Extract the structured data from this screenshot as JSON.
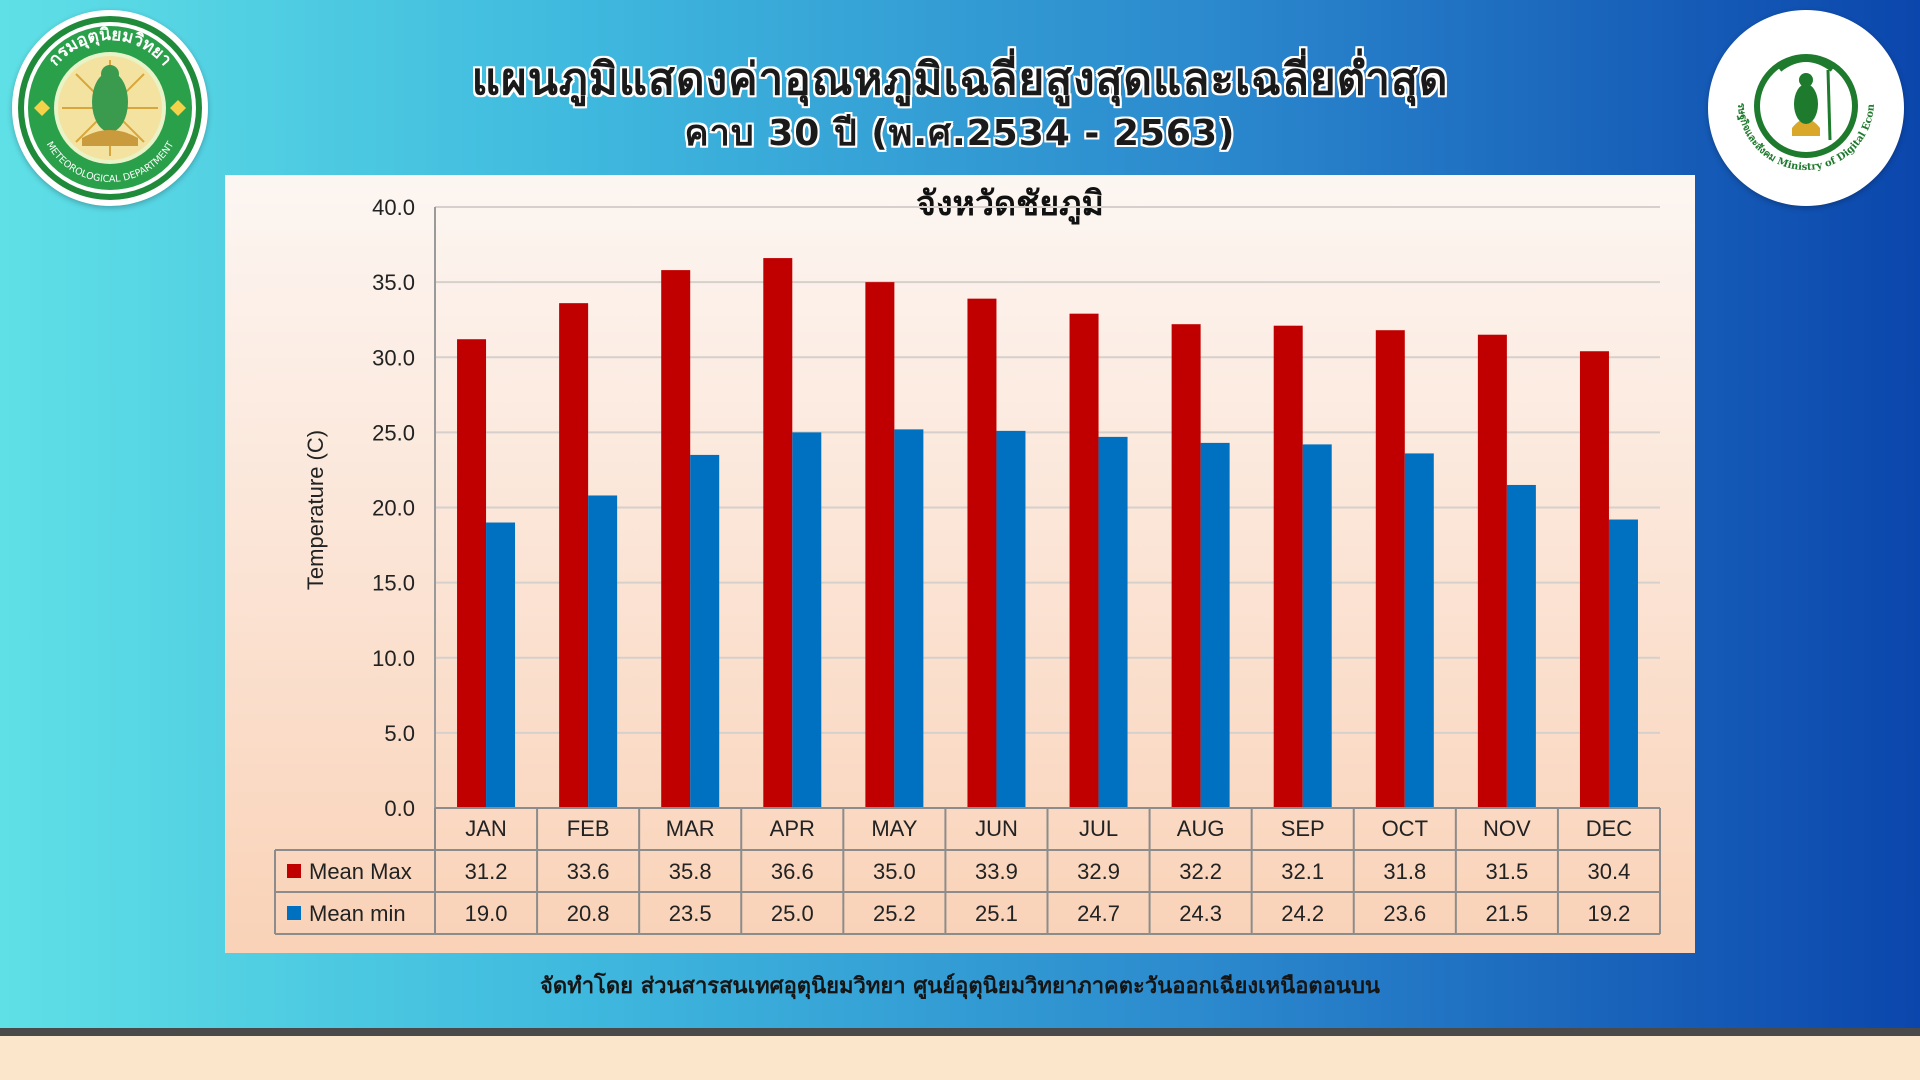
{
  "header": {
    "title": "แผนภูมิแสดงค่าอุณหภูมิเฉลี่ยสูงสุดและเฉลี่ยต่ำสุด",
    "subtitle": "คาบ 30 ปี (พ.ศ.2534 - 2563)"
  },
  "logos": {
    "left_text_top": "กรมอุตุนิยมวิทยา",
    "left_text_bottom": "METEOROLOGICAL DEPARTMENT",
    "right_text": "กระทรวงดิจิทัลเพื่อเศรษฐกิจและสังคม Ministry of Digital Economy and Society"
  },
  "footer": {
    "credit": "จัดทำโดย ส่วนสารสนเทศอุตุนิยมวิทยา ศูนย์อุตุนิยมวิทยาภาคตะวันออกเฉียงเหนือตอนบน"
  },
  "colors": {
    "max_series": "#c00000",
    "min_series": "#0070c0"
  },
  "chart_data": {
    "type": "bar",
    "title": "จังหวัดชัยภูมิ",
    "xlabel": "",
    "ylabel": "Temperature (C)",
    "ylim": [
      0,
      40
    ],
    "yticks": [
      "0.0",
      "5.0",
      "10.0",
      "15.0",
      "20.0",
      "25.0",
      "30.0",
      "35.0",
      "40.0"
    ],
    "grid": true,
    "legend": "data-table-left",
    "categories": [
      "JAN",
      "FEB",
      "MAR",
      "APR",
      "MAY",
      "JUN",
      "JUL",
      "AUG",
      "SEP",
      "OCT",
      "NOV",
      "DEC"
    ],
    "series": [
      {
        "name": "Mean Max",
        "values": [
          31.2,
          33.6,
          35.8,
          36.6,
          35.0,
          33.9,
          32.9,
          32.2,
          32.1,
          31.8,
          31.5,
          30.4
        ]
      },
      {
        "name": "Mean min",
        "values": [
          19.0,
          20.8,
          23.5,
          25.0,
          25.2,
          25.1,
          24.7,
          24.3,
          24.2,
          23.6,
          21.5,
          19.2
        ]
      }
    ]
  }
}
